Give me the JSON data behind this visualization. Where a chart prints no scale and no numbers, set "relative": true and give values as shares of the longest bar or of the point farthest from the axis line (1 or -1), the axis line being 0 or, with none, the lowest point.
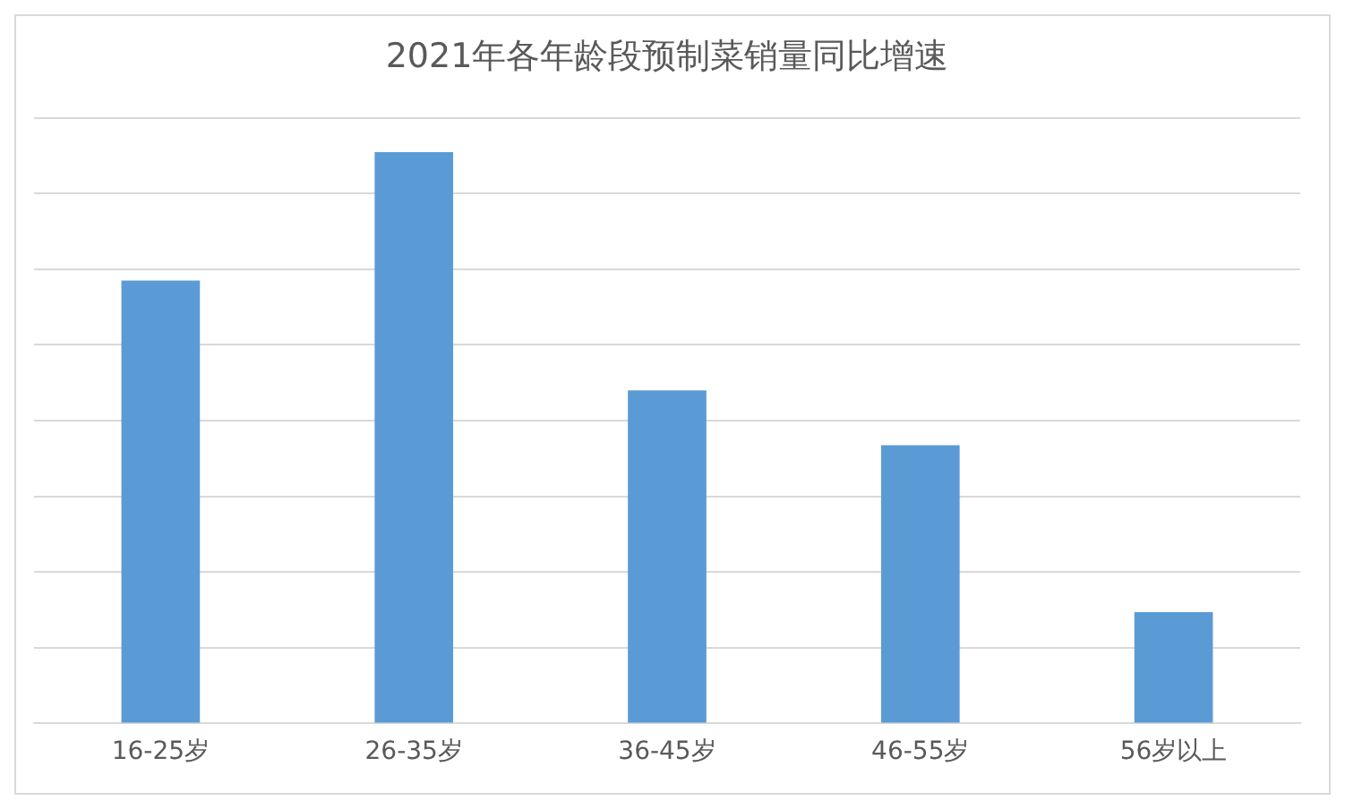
{
  "chart_data": {
    "type": "bar",
    "title": "2021年各年龄段预制菜销量同比增速",
    "categories": [
      "16-25岁",
      "26-35岁",
      "36-45岁",
      "46-55岁",
      "56岁以上"
    ],
    "values": [
      0.775,
      1,
      0.583,
      0.487,
      0.195
    ],
    "color": "#5b9bd5",
    "relative": true,
    "grid": "y",
    "legend": false
  }
}
